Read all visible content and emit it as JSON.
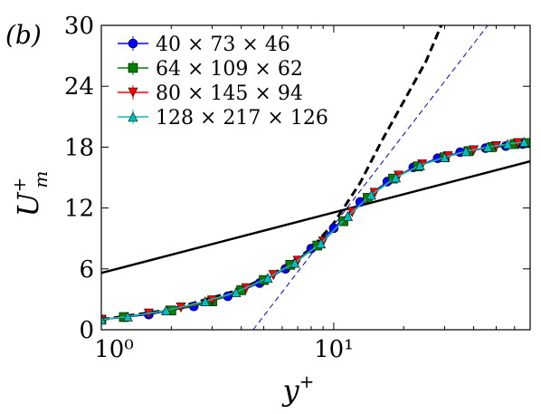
{
  "panel_label": "(b)",
  "chart_data": {
    "type": "line",
    "xlabel": "y⁺",
    "ylabel": "U⁺ₘ",
    "xscale": "log",
    "xlim": [
      1,
      70
    ],
    "ylim": [
      0,
      30
    ],
    "yticks": [
      0,
      6,
      12,
      18,
      24,
      30
    ],
    "ytick_labels": [
      "0",
      "6",
      "12",
      "18",
      "24",
      "30"
    ],
    "xticks": [
      1,
      10
    ],
    "xtick_labels": [
      "10⁰",
      "10¹"
    ],
    "grid": false,
    "legend_position": "top-left",
    "reference_lines": [
      {
        "style": "solid",
        "color": "#000000",
        "points": [
          [
            1,
            5.6
          ],
          [
            70,
            16.6
          ]
        ]
      },
      {
        "style": "dashed",
        "color": "#000000",
        "function": "quadratic",
        "points": [
          [
            1,
            1.0
          ],
          [
            2,
            2.0
          ],
          [
            4,
            4.0
          ],
          [
            6,
            6.0
          ],
          [
            8,
            8.0
          ],
          [
            10,
            10.5
          ],
          [
            13,
            14.5
          ],
          [
            16,
            18.5
          ],
          [
            20,
            22.5
          ],
          [
            25,
            26.5
          ],
          [
            29,
            30.0
          ]
        ]
      },
      {
        "style": "dashed",
        "color": "#0000cc",
        "points": [
          [
            4.5,
            0
          ],
          [
            46,
            30
          ]
        ]
      }
    ],
    "series": [
      {
        "name": "40 × 73 × 46",
        "color": "#0000ff",
        "marker": "circle",
        "x": [
          1.0,
          1.6,
          2.5,
          3.5,
          4.8,
          6.2,
          8.0,
          10.0,
          13.0,
          17.0,
          22.0,
          28.0,
          35.0,
          45.0,
          55.0,
          65.0
        ],
        "y": [
          1.0,
          1.5,
          2.3,
          3.3,
          4.6,
          6.0,
          8.0,
          10.0,
          12.6,
          14.6,
          16.0,
          16.9,
          17.5,
          17.9,
          18.1,
          18.3
        ]
      },
      {
        "name": "64 × 109 × 62",
        "color": "#008000",
        "marker": "square",
        "x": [
          1.0,
          1.25,
          2.0,
          3.0,
          4.0,
          5.0,
          6.5,
          8.5,
          11.0,
          14.0,
          18.0,
          23.0,
          30.0,
          38.0,
          48.0,
          60.0,
          68.0
        ],
        "y": [
          1.0,
          1.25,
          1.9,
          2.8,
          3.9,
          4.9,
          6.4,
          8.3,
          10.7,
          13.0,
          14.9,
          16.1,
          17.0,
          17.6,
          18.0,
          18.3,
          18.4
        ]
      },
      {
        "name": "80 × 145 × 94",
        "color": "#ff0000",
        "marker": "triangle-down",
        "x": [
          1.0,
          1.6,
          2.2,
          3.0,
          4.2,
          5.5,
          7.0,
          9.0,
          12.0,
          15.0,
          19.0,
          24.0,
          31.0,
          40.0,
          50.0,
          62.0
        ],
        "y": [
          1.0,
          1.6,
          2.2,
          2.9,
          4.1,
          5.4,
          6.8,
          8.7,
          11.6,
          13.5,
          15.2,
          16.3,
          17.1,
          17.7,
          18.1,
          18.4
        ]
      },
      {
        "name": "128 × 217 × 126",
        "color": "#00bfbf",
        "marker": "triangle-up",
        "x": [
          1.0,
          1.3,
          1.9,
          2.8,
          3.8,
          5.2,
          6.8,
          8.8,
          11.5,
          14.5,
          18.5,
          23.5,
          30.0,
          37.0,
          46.0,
          56.0,
          66.0
        ],
        "y": [
          1.0,
          1.3,
          1.9,
          2.8,
          3.7,
          5.1,
          6.6,
          8.5,
          11.2,
          13.3,
          15.0,
          16.2,
          17.0,
          17.6,
          18.0,
          18.3,
          18.5
        ]
      }
    ]
  }
}
